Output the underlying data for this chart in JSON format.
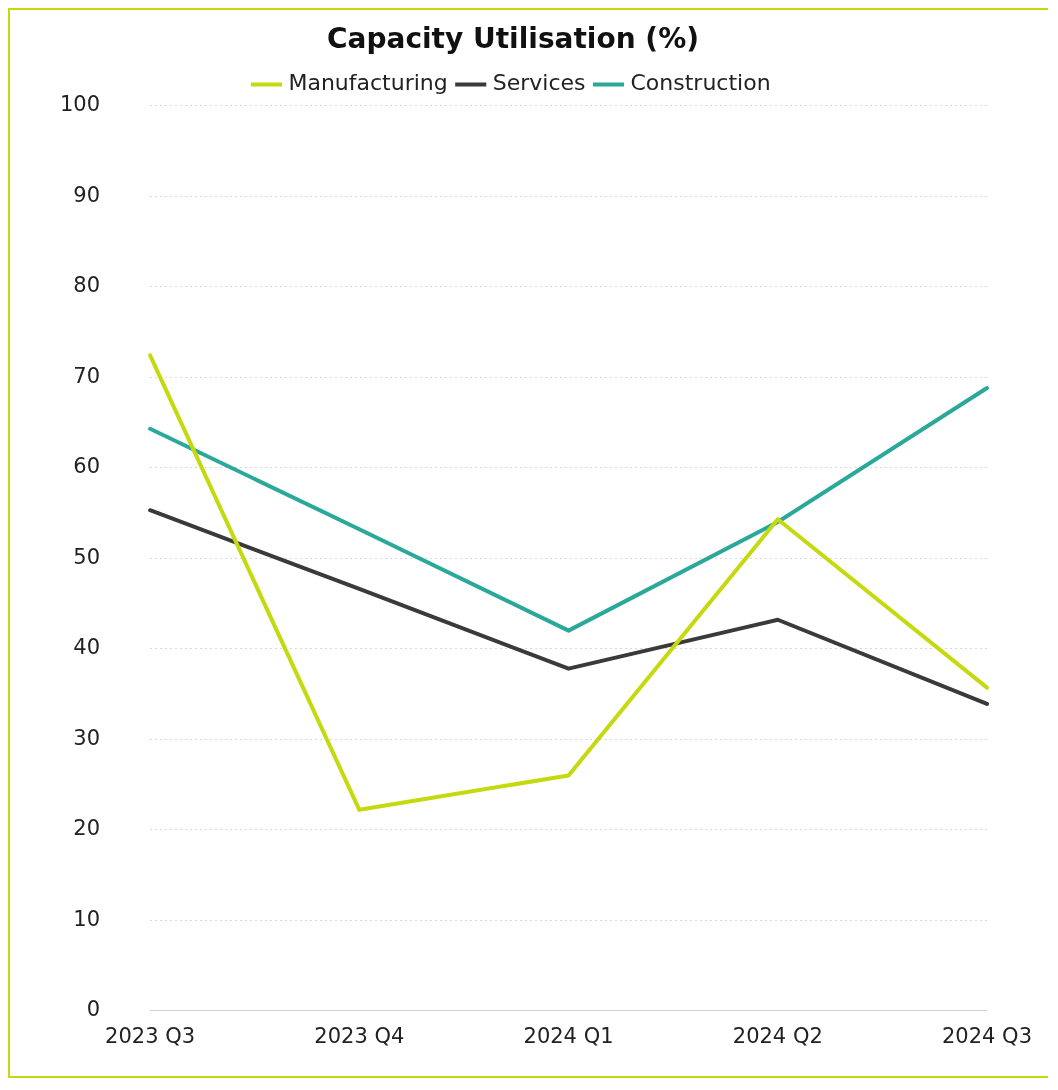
{
  "chart_data": {
    "type": "line",
    "title": "Capacity Utilisation (%)",
    "categories": [
      "2023 Q3",
      "2023 Q4",
      "2024 Q1",
      "2024 Q2",
      "2024 Q3"
    ],
    "series": [
      {
        "name": "Manufacturing",
        "color": "#c5d90f",
        "values": [
          72.4,
          22.2,
          26.0,
          54.3,
          35.7
        ]
      },
      {
        "name": "Services",
        "color": "#3a3a3a",
        "values": [
          55.3,
          46.6,
          37.8,
          43.2,
          33.9
        ]
      },
      {
        "name": "Construction",
        "color": "#2aa89a",
        "values": [
          64.3,
          53.2,
          42.0,
          54.0,
          68.8
        ]
      }
    ],
    "ylim": [
      0,
      100
    ],
    "yticks": [
      0,
      10,
      20,
      30,
      40,
      50,
      60,
      70,
      80,
      90,
      100
    ],
    "grid": "y",
    "legend": "top",
    "marker": "none",
    "line_style": "solid"
  }
}
